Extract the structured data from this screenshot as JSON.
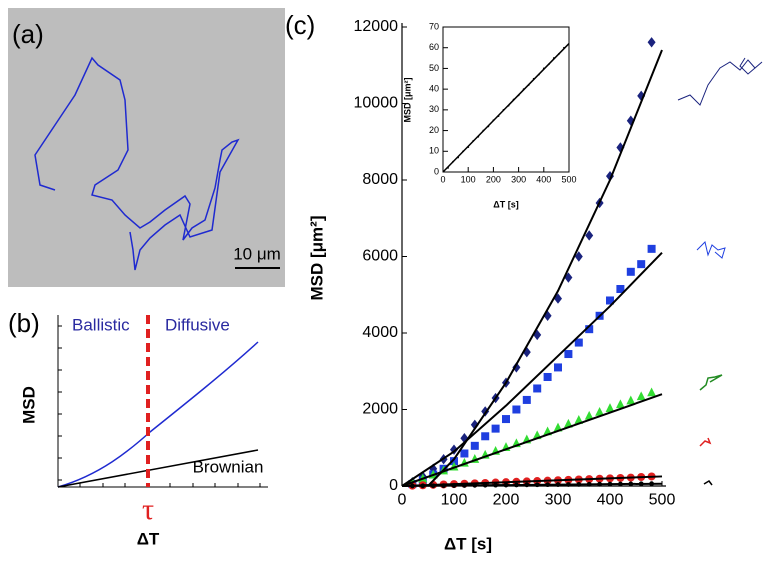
{
  "panel_a": {
    "label": "(a)",
    "scale_bar": "10 μm"
  },
  "panel_b": {
    "label": "(b)",
    "left_region": "Ballistic",
    "right_region": "Diffusive",
    "y_label": "MSD",
    "x_label": "ΔT",
    "marker_label": "τ",
    "line_label": "Brownian"
  },
  "panel_c": {
    "label": "(c)"
  },
  "chart_data": [
    {
      "type": "scatter",
      "x_label": "ΔT [s]",
      "y_label": "MSD [μm²]",
      "xlim": [
        0,
        500
      ],
      "ylim": [
        0,
        12000
      ],
      "xticks": [
        0,
        100,
        200,
        300,
        400,
        500
      ],
      "yticks": [
        0,
        2000,
        4000,
        6000,
        8000,
        10000,
        12000
      ],
      "series": [
        {
          "color": "#1a237e",
          "marker": "diamond",
          "x": [
            20,
            40,
            60,
            80,
            100,
            120,
            140,
            160,
            180,
            200,
            220,
            240,
            260,
            280,
            300,
            320,
            340,
            360,
            380,
            400,
            420,
            440,
            460,
            480
          ],
          "values": [
            100,
            250,
            450,
            700,
            950,
            1250,
            1600,
            1950,
            2300,
            2700,
            3100,
            3500,
            3950,
            4450,
            4900,
            5450,
            6000,
            6550,
            7400,
            8100,
            8850,
            9550,
            10200,
            11600
          ]
        },
        {
          "color": "#1f3fe0",
          "marker": "square",
          "x": [
            20,
            40,
            60,
            80,
            100,
            120,
            140,
            160,
            180,
            200,
            220,
            240,
            260,
            280,
            300,
            320,
            340,
            360,
            380,
            400,
            420,
            440,
            460,
            480
          ],
          "values": [
            50,
            150,
            300,
            450,
            650,
            850,
            1050,
            1300,
            1500,
            1750,
            2000,
            2250,
            2550,
            2850,
            3100,
            3450,
            3750,
            4100,
            4450,
            4850,
            5150,
            5600,
            5800,
            6200
          ]
        },
        {
          "color": "#33dd33",
          "marker": "triangle",
          "x": [
            20,
            40,
            60,
            80,
            100,
            120,
            140,
            160,
            180,
            200,
            220,
            240,
            260,
            280,
            300,
            320,
            340,
            360,
            380,
            400,
            420,
            440,
            460,
            480
          ],
          "values": [
            100,
            200,
            300,
            410,
            510,
            610,
            710,
            820,
            920,
            1020,
            1120,
            1220,
            1330,
            1430,
            1530,
            1630,
            1730,
            1840,
            1940,
            2040,
            2140,
            2240,
            2350,
            2450
          ]
        },
        {
          "color": "#e02020",
          "marker": "circle",
          "x": [
            20,
            40,
            60,
            80,
            100,
            120,
            140,
            160,
            180,
            200,
            220,
            240,
            260,
            280,
            300,
            320,
            340,
            360,
            380,
            400,
            420,
            440,
            460,
            480
          ],
          "values": [
            10,
            20,
            30,
            40,
            50,
            60,
            70,
            80,
            90,
            100,
            110,
            120,
            130,
            140,
            150,
            160,
            170,
            180,
            190,
            200,
            210,
            220,
            235,
            250
          ]
        },
        {
          "color": "#000000",
          "marker": "dot",
          "x": [
            20,
            40,
            60,
            80,
            100,
            120,
            140,
            160,
            180,
            200,
            220,
            240,
            260,
            280,
            300,
            320,
            340,
            360,
            380,
            400,
            420,
            440,
            460,
            480
          ],
          "values": [
            2,
            5,
            7,
            10,
            12,
            15,
            17,
            20,
            22,
            25,
            27,
            30,
            32,
            35,
            37,
            40,
            42,
            45,
            47,
            50,
            52,
            55,
            57,
            60
          ]
        },
        {
          "color": "#000000",
          "marker": "line",
          "x": [
            50,
            100,
            200,
            300,
            400,
            500
          ],
          "values": [
            0,
            700,
            2700,
            5100,
            8000,
            11400
          ]
        },
        {
          "color": "#000000",
          "marker": "line",
          "x": [
            0,
            100,
            200,
            300,
            400,
            500
          ],
          "values": [
            0,
            900,
            2100,
            3400,
            4700,
            6100
          ]
        },
        {
          "color": "#000000",
          "marker": "line",
          "x": [
            0,
            500
          ],
          "values": [
            0,
            2400
          ]
        },
        {
          "color": "#000000",
          "marker": "line",
          "x": [
            0,
            500
          ],
          "values": [
            0,
            250
          ]
        },
        {
          "color": "#000000",
          "marker": "line",
          "x": [
            0,
            500
          ],
          "values": [
            0,
            60
          ]
        }
      ]
    },
    {
      "type": "scatter",
      "x_label": "ΔT [s]",
      "y_label": "MSD [μm²]",
      "xlim": [
        0,
        500
      ],
      "ylim": [
        0,
        70
      ],
      "xticks": [
        0,
        100,
        200,
        300,
        400,
        500
      ],
      "yticks": [
        0,
        10,
        20,
        30,
        40,
        50,
        60,
        70
      ],
      "series": [
        {
          "color": "#000000",
          "marker": "dot",
          "x": [
            20,
            40,
            60,
            80,
            100,
            120,
            140,
            160,
            180,
            200,
            220,
            240,
            260,
            280,
            300,
            320,
            340,
            360,
            380,
            400,
            420,
            440,
            460,
            480
          ],
          "values": [
            2,
            5,
            7,
            10,
            12,
            15,
            17,
            20,
            22,
            25,
            27,
            30,
            32,
            35,
            37,
            40,
            42,
            45,
            47,
            50,
            52,
            55,
            57,
            60
          ]
        },
        {
          "color": "#000000",
          "marker": "line",
          "x": [
            0,
            500
          ],
          "values": [
            0,
            62
          ]
        }
      ]
    }
  ]
}
